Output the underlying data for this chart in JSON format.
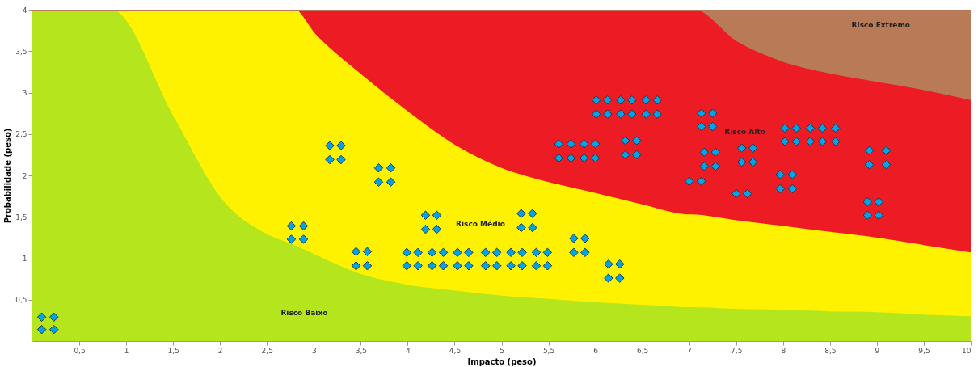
{
  "chart_data": {
    "type": "area",
    "stacked": true,
    "xlabel": "Impacto (peso)",
    "ylabel": "Probabilidade (peso)",
    "xlim": [
      0,
      10
    ],
    "ylim": [
      0,
      4
    ],
    "xticks": [
      {
        "value": 0.5,
        "label": "0,5"
      },
      1,
      {
        "value": 1.5,
        "label": "1,5"
      },
      2,
      {
        "value": 2.5,
        "label": "2,5"
      },
      3,
      {
        "value": 3.5,
        "label": "3,5"
      },
      4,
      {
        "value": 4.5,
        "label": "4,5"
      },
      5,
      {
        "value": 5.5,
        "label": "5,5"
      },
      6,
      {
        "value": 6.5,
        "label": "6,5"
      },
      7,
      {
        "value": 7.5,
        "label": "7,5"
      },
      8,
      {
        "value": 8.5,
        "label": "8,5"
      },
      9,
      {
        "value": 9.5,
        "label": "9,5"
      },
      10
    ],
    "yticks": [
      {
        "value": 0.5,
        "label": "0,5"
      },
      1,
      {
        "value": 1.5,
        "label": "1,5"
      },
      2,
      {
        "value": 2.5,
        "label": "2,5"
      },
      3,
      {
        "value": 3.5,
        "label": "3,5"
      },
      4
    ],
    "grid": false,
    "x": [
      0,
      0.82,
      1.5,
      2,
      2.5,
      2.77,
      3,
      3.5,
      4,
      4.5,
      5,
      5.5,
      6,
      6.5,
      7,
      7.02,
      7.5,
      8,
      8.5,
      9,
      9.5,
      10
    ],
    "series": [
      {
        "color": "#b5e61d",
        "values": [
          4,
          4,
          2.68,
          1.71,
          1.27,
          1.15,
          1.03,
          0.79,
          0.66,
          0.59,
          0.53,
          0.49,
          0.45,
          0.42,
          0.39,
          0.39,
          0.37,
          0.36,
          0.34,
          0.33,
          0.3,
          0.28
        ]
      },
      {
        "color": "#fff200",
        "values": [
          0,
          0,
          1.32,
          2.29,
          2.73,
          2.85,
          2.67,
          2.41,
          2.09,
          1.76,
          1.54,
          1.41,
          1.32,
          1.21,
          1.12,
          1.12,
          1.07,
          1.01,
          0.96,
          0.9,
          0.84,
          0.77
        ]
      },
      {
        "color": "#ed1c24",
        "values": [
          0,
          0,
          0,
          0,
          0,
          0,
          0.3,
          0.8,
          1.25,
          1.65,
          1.93,
          2.1,
          2.23,
          2.37,
          2.49,
          2.49,
          2.16,
          1.98,
          1.91,
          1.88,
          1.87,
          1.84
        ]
      },
      {
        "color": "#b97a57",
        "values": [
          0,
          0,
          0,
          0,
          0,
          0,
          0,
          0,
          0,
          0,
          0,
          0,
          0,
          0,
          0,
          0,
          0.4,
          0.65,
          0.79,
          0.89,
          0.99,
          1.11
        ]
      },
      {
        "type": "scatter",
        "color": "#00a2e8",
        "marker": "diamond",
        "x": [
          0.1,
          0.23,
          0.1,
          0.23,
          2.76,
          2.89,
          2.76,
          2.89,
          3.17,
          3.29,
          3.17,
          3.29,
          3.45,
          3.57,
          3.45,
          3.57,
          3.69,
          3.82,
          3.69,
          3.82,
          4.19,
          4.31,
          4.19,
          4.31,
          3.99,
          4.11,
          4.26,
          4.38,
          4.53,
          4.65,
          4.83,
          4.95,
          5.1,
          5.22,
          5.37,
          5.49,
          3.99,
          4.11,
          4.26,
          4.38,
          4.53,
          4.65,
          4.83,
          4.95,
          5.1,
          5.22,
          5.37,
          5.49,
          5.21,
          5.33,
          5.21,
          5.33,
          5.77,
          5.89,
          5.77,
          5.89,
          6.14,
          6.26,
          6.14,
          6.26,
          6.01,
          6.13,
          6.27,
          6.39,
          6.54,
          6.66,
          6.01,
          6.13,
          6.27,
          6.39,
          6.54,
          6.66,
          5.61,
          5.74,
          5.88,
          6.0,
          5.61,
          5.74,
          5.88,
          6.0,
          6.32,
          6.44,
          6.32,
          6.44,
          7.13,
          7.25,
          7.13,
          7.25,
          7.16,
          7.28,
          7.16,
          7.28,
          7.0,
          7.13,
          7.56,
          7.68,
          7.56,
          7.68,
          7.5,
          7.62,
          8.02,
          8.14,
          8.29,
          8.42,
          8.56,
          8.02,
          8.14,
          8.29,
          8.42,
          8.56,
          8.92,
          9.1,
          8.92,
          9.1,
          7.97,
          8.1,
          7.97,
          8.1,
          8.9,
          9.02,
          8.9,
          9.02
        ],
        "values": [
          0.29,
          0.29,
          0.14,
          0.14,
          1.39,
          1.39,
          1.23,
          1.23,
          2.36,
          2.36,
          2.19,
          2.19,
          1.08,
          1.08,
          0.91,
          0.91,
          2.09,
          2.09,
          1.92,
          1.92,
          1.52,
          1.52,
          1.35,
          1.35,
          1.07,
          1.07,
          1.07,
          1.07,
          1.07,
          1.07,
          1.07,
          1.07,
          1.07,
          1.07,
          1.07,
          1.07,
          0.91,
          0.91,
          0.91,
          0.91,
          0.91,
          0.91,
          0.91,
          0.91,
          0.91,
          0.91,
          0.91,
          0.91,
          1.54,
          1.54,
          1.37,
          1.37,
          1.24,
          1.24,
          1.07,
          1.07,
          0.93,
          0.93,
          0.76,
          0.76,
          2.91,
          2.91,
          2.91,
          2.91,
          2.91,
          2.91,
          2.74,
          2.74,
          2.74,
          2.74,
          2.74,
          2.74,
          2.38,
          2.38,
          2.38,
          2.38,
          2.21,
          2.21,
          2.21,
          2.21,
          2.42,
          2.42,
          2.25,
          2.25,
          2.75,
          2.75,
          2.59,
          2.59,
          2.28,
          2.28,
          2.11,
          2.11,
          1.93,
          1.93,
          2.33,
          2.33,
          2.16,
          2.16,
          1.78,
          1.78,
          2.57,
          2.57,
          2.57,
          2.57,
          2.57,
          2.41,
          2.41,
          2.41,
          2.41,
          2.41,
          2.3,
          2.3,
          2.13,
          2.13,
          2.01,
          2.01,
          1.84,
          1.84,
          1.68,
          1.68,
          1.52,
          1.52
        ]
      }
    ],
    "annotations": [
      "Risco Extremo",
      "Risco Alto",
      "Risco Médio",
      "Risco Baixo"
    ]
  }
}
